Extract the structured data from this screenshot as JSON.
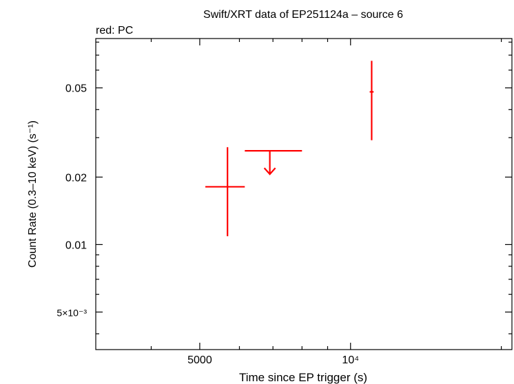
{
  "title": "Swift/XRT data of EP251124a – source 6",
  "subtitle": "red: PC",
  "chart_data": {
    "type": "scatter",
    "title": "Swift/XRT data of EP251124a – source 6",
    "xlabel": "Time since EP trigger (s)",
    "ylabel": "Count Rate (0.3–10 keV) (s⁻¹)",
    "x_scale": "log",
    "y_scale": "log",
    "xlim": [
      3100,
      21000
    ],
    "ylim": [
      0.0034,
      0.083
    ],
    "x_tick_labels": [
      {
        "value": 5000,
        "label": "5000"
      },
      {
        "value": 10000,
        "label": "10⁴"
      }
    ],
    "y_tick_labels": [
      {
        "value": 0.005,
        "label": "5×10⁻³"
      },
      {
        "value": 0.01,
        "label": "0.01"
      },
      {
        "value": 0.02,
        "label": "0.02"
      },
      {
        "value": 0.05,
        "label": "0.05"
      }
    ],
    "series": [
      {
        "name": "PC",
        "color": "#ff0000",
        "points": [
          {
            "x": 5680,
            "x_lo": 5130,
            "x_hi": 6150,
            "y": 0.0181,
            "y_lo": 0.0109,
            "y_hi": 0.0272
          },
          {
            "x": 11020,
            "x_lo": 10920,
            "x_hi": 11120,
            "y": 0.048,
            "y_lo": 0.0292,
            "y_hi": 0.066
          }
        ],
        "upper_limits": [
          {
            "x": 6900,
            "x_lo": 6150,
            "x_hi": 8000,
            "y": 0.0262
          }
        ]
      }
    ]
  }
}
